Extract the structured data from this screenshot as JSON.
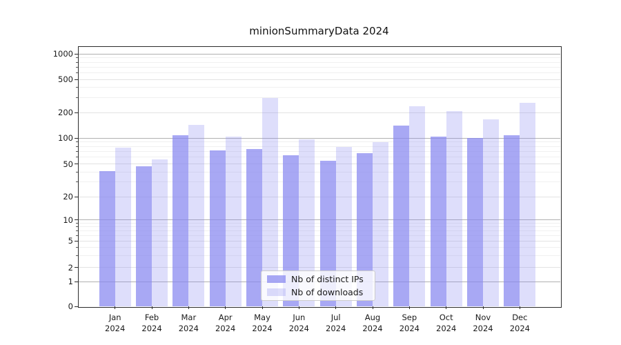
{
  "title": "minionSummaryData 2024",
  "chart_data": {
    "type": "bar",
    "title": "minionSummaryData 2024",
    "yscale": "symlog",
    "grid": true,
    "legend_position": "lower center",
    "ylim": [
      0,
      1250
    ],
    "y_ticks": [
      0,
      1,
      2,
      5,
      10,
      20,
      50,
      100,
      200,
      500,
      1000
    ],
    "y_major_ticks": [
      1,
      10,
      100,
      1000
    ],
    "months": [
      "Jan",
      "Feb",
      "Mar",
      "Apr",
      "May",
      "Jun",
      "Jul",
      "Aug",
      "Sep",
      "Oct",
      "Nov",
      "Dec"
    ],
    "year_label": "2024",
    "categories": [
      "Jan 2024",
      "Feb 2024",
      "Mar 2024",
      "Apr 2024",
      "May 2024",
      "Jun 2024",
      "Jul 2024",
      "Aug 2024",
      "Sep 2024",
      "Oct 2024",
      "Nov 2024",
      "Dec 2024"
    ],
    "series": [
      {
        "name": "Nb of distinct IPs",
        "color": "#8787f0",
        "opacity": 0.72,
        "values": [
          41,
          47,
          107,
          72,
          75,
          63,
          54,
          66,
          140,
          103,
          100,
          107
        ]
      },
      {
        "name": "Nb of downloads",
        "color": "#8787f0",
        "opacity": 0.28,
        "values": [
          77,
          56,
          143,
          103,
          300,
          97,
          78,
          90,
          240,
          208,
          166,
          260
        ]
      }
    ],
    "colors": {
      "bar_base": "#8787f0",
      "grid_major": "#b0b0b0",
      "grid_minor": "#f0f0f0",
      "spine": "#2a2a2a"
    }
  }
}
